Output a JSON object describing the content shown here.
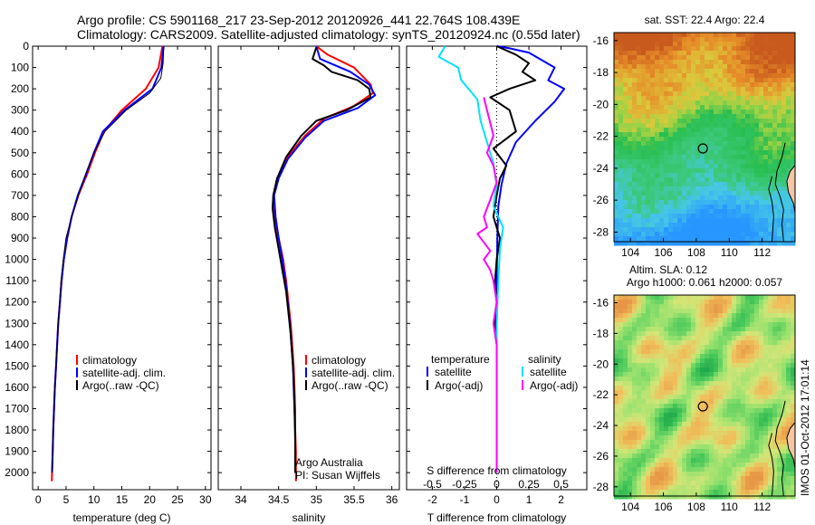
{
  "header": {
    "line1": "Argo profile: CS 5901168_217 23-Sep-2012 20120926_441 22.764S 108.439E",
    "line2": "Climatology: CARS2009. Satellite-adjusted climatology: synTS_20120924.nc (0.55d later)"
  },
  "credit": "IMOS 01-Oct-2012 17:01:14",
  "colors": {
    "climatology": "#ff0000",
    "satellite": "#0000ff",
    "argo": "#000000",
    "sat_salinity": "#00e0ff",
    "argo_adj_salinity": "#ff00ff"
  },
  "chart_data": [
    {
      "id": "temp",
      "type": "line",
      "xlabel": "temperature (deg C)",
      "ylabel": "",
      "xlim": [
        -1,
        31
      ],
      "ylim": [
        2080,
        0
      ],
      "xticks": [
        0,
        5,
        10,
        15,
        20,
        25,
        30
      ],
      "yticks": [
        0,
        100,
        200,
        300,
        400,
        500,
        600,
        700,
        800,
        900,
        1000,
        1100,
        1200,
        1300,
        1400,
        1500,
        1600,
        1700,
        1800,
        1900,
        2000
      ],
      "grid": false,
      "legend_entries": [
        "climatology",
        "satellite-adj. clim.",
        "Argo(..raw -QC)"
      ],
      "series": [
        {
          "name": "climatology",
          "color": "#ff0000",
          "width": 2,
          "points": [
            [
              22.3,
              0
            ],
            [
              21.6,
              100
            ],
            [
              19.3,
              200
            ],
            [
              15.0,
              300
            ],
            [
              11.8,
              400
            ],
            [
              10.2,
              500
            ],
            [
              8.8,
              600
            ],
            [
              7.2,
              700
            ],
            [
              6.0,
              800
            ],
            [
              5.2,
              900
            ],
            [
              4.6,
              1000
            ],
            [
              4.2,
              1100
            ],
            [
              3.9,
              1200
            ],
            [
              3.6,
              1300
            ],
            [
              3.4,
              1400
            ],
            [
              3.2,
              1500
            ],
            [
              3.0,
              1600
            ],
            [
              2.85,
              1700
            ],
            [
              2.7,
              1800
            ],
            [
              2.6,
              1900
            ],
            [
              2.5,
              2000
            ],
            [
              2.45,
              2040
            ]
          ]
        },
        {
          "name": "satellite-adj. clim.",
          "color": "#0000ff",
          "width": 2,
          "points": [
            [
              22.5,
              0
            ],
            [
              22.1,
              100
            ],
            [
              20.5,
              200
            ],
            [
              15.5,
              300
            ],
            [
              11.6,
              400
            ],
            [
              10.0,
              500
            ],
            [
              8.6,
              600
            ],
            [
              7.1,
              700
            ],
            [
              6.0,
              800
            ],
            [
              5.2,
              900
            ],
            [
              4.6,
              1000
            ],
            [
              4.2,
              1100
            ],
            [
              3.9,
              1200
            ],
            [
              3.6,
              1300
            ],
            [
              3.4,
              1400
            ],
            [
              3.2,
              1500
            ],
            [
              3.0,
              1600
            ],
            [
              2.85,
              1700
            ],
            [
              2.7,
              1800
            ],
            [
              2.6,
              1900
            ],
            [
              2.5,
              2000
            ]
          ]
        },
        {
          "name": "Argo(..raw -QC)",
          "color": "#000000",
          "width": 1,
          "points": [
            [
              22.5,
              5
            ],
            [
              22.4,
              80
            ],
            [
              22.0,
              150
            ],
            [
              20.0,
              220
            ],
            [
              15.8,
              300
            ],
            [
              12.0,
              400
            ],
            [
              10.0,
              500
            ],
            [
              8.5,
              600
            ],
            [
              7.2,
              700
            ],
            [
              6.0,
              800
            ],
            [
              5.0,
              900
            ],
            [
              4.5,
              1000
            ],
            [
              4.1,
              1100
            ],
            [
              3.85,
              1200
            ],
            [
              3.6,
              1300
            ],
            [
              3.4,
              1400
            ],
            [
              3.2,
              1500
            ],
            [
              3.0,
              1600
            ],
            [
              2.85,
              1700
            ],
            [
              2.7,
              1800
            ],
            [
              2.6,
              1900
            ],
            [
              2.5,
              2000
            ]
          ]
        }
      ]
    },
    {
      "id": "sal",
      "type": "line",
      "xlabel": "salinity",
      "ylabel": "",
      "xlim": [
        33.7,
        36.1
      ],
      "ylim": [
        2080,
        0
      ],
      "xticks": [
        34,
        34.5,
        35,
        35.5,
        36
      ],
      "grid": false,
      "legend_entries": [
        "climatology",
        "satellite-adj. clim.",
        "Argo(..raw -QC)"
      ],
      "annotation_lines": [
        "Argo Australia",
        "PI: Susan Wijffels"
      ],
      "series": [
        {
          "name": "climatology",
          "color": "#ff0000",
          "width": 2,
          "points": [
            [
              35.0,
              0
            ],
            [
              35.15,
              40
            ],
            [
              35.5,
              100
            ],
            [
              35.72,
              180
            ],
            [
              35.75,
              220
            ],
            [
              35.5,
              280
            ],
            [
              35.1,
              340
            ],
            [
              34.85,
              420
            ],
            [
              34.62,
              520
            ],
            [
              34.48,
              620
            ],
            [
              34.43,
              700
            ],
            [
              34.45,
              800
            ],
            [
              34.5,
              900
            ],
            [
              34.56,
              1000
            ],
            [
              34.6,
              1100
            ],
            [
              34.63,
              1200
            ],
            [
              34.66,
              1300
            ],
            [
              34.68,
              1400
            ],
            [
              34.7,
              1500
            ],
            [
              34.71,
              1600
            ],
            [
              34.72,
              1700
            ],
            [
              34.72,
              1800
            ],
            [
              34.73,
              1900
            ],
            [
              34.73,
              2000
            ],
            [
              34.73,
              2040
            ]
          ]
        },
        {
          "name": "satellite-adj. clim.",
          "color": "#0000ff",
          "width": 2,
          "points": [
            [
              35.0,
              0
            ],
            [
              35.05,
              60
            ],
            [
              35.45,
              120
            ],
            [
              35.7,
              180
            ],
            [
              35.78,
              230
            ],
            [
              35.55,
              290
            ],
            [
              35.1,
              350
            ],
            [
              34.85,
              430
            ],
            [
              34.62,
              530
            ],
            [
              34.5,
              620
            ],
            [
              34.44,
              700
            ],
            [
              34.46,
              800
            ],
            [
              34.5,
              900
            ],
            [
              34.55,
              1000
            ],
            [
              34.59,
              1100
            ],
            [
              34.62,
              1200
            ],
            [
              34.65,
              1300
            ],
            [
              34.67,
              1400
            ],
            [
              34.69,
              1500
            ],
            [
              34.7,
              1600
            ],
            [
              34.71,
              1700
            ],
            [
              34.72,
              1800
            ],
            [
              34.72,
              1900
            ],
            [
              34.72,
              2000
            ]
          ]
        },
        {
          "name": "Argo(..raw -QC)",
          "color": "#000000",
          "width": 2,
          "points": [
            [
              35.0,
              5
            ],
            [
              34.95,
              60
            ],
            [
              35.1,
              90
            ],
            [
              35.2,
              120
            ],
            [
              35.55,
              160
            ],
            [
              35.7,
              200
            ],
            [
              35.72,
              240
            ],
            [
              35.4,
              300
            ],
            [
              35.0,
              350
            ],
            [
              34.8,
              420
            ],
            [
              34.6,
              520
            ],
            [
              34.48,
              620
            ],
            [
              34.43,
              700
            ],
            [
              34.42,
              760
            ],
            [
              34.45,
              850
            ],
            [
              34.5,
              950
            ],
            [
              34.55,
              1050
            ],
            [
              34.6,
              1150
            ],
            [
              34.63,
              1250
            ],
            [
              34.66,
              1350
            ],
            [
              34.68,
              1450
            ],
            [
              34.7,
              1550
            ],
            [
              34.71,
              1700
            ],
            [
              34.72,
              1850
            ],
            [
              34.72,
              2000
            ]
          ]
        }
      ]
    },
    {
      "id": "diff",
      "type": "line",
      "xlabel": "T difference from climatology",
      "top_xlabel": "S difference from climatology",
      "ylabel": "",
      "xlim": [
        -2.8,
        2.8
      ],
      "ylim": [
        2080,
        0
      ],
      "xticks": [
        -2,
        -1,
        0,
        1,
        2
      ],
      "top_xticks": [
        -0.5,
        -0.25,
        0,
        0.25,
        0.5
      ],
      "zero_line": true,
      "grid": false,
      "legend_headings": [
        "temperature",
        "salinity"
      ],
      "legend_entries": [
        "satellite",
        "Argo(-adj)",
        "satellite",
        "Argo(-adj)"
      ],
      "series": [
        {
          "name": "satellite",
          "color": "#0000ff",
          "width": 2,
          "quantity": "temperature",
          "points": [
            [
              0.0,
              0
            ],
            [
              0.4,
              10
            ],
            [
              1.0,
              30
            ],
            [
              1.8,
              100
            ],
            [
              1.6,
              160
            ],
            [
              2.1,
              200
            ],
            [
              1.8,
              260
            ],
            [
              1.2,
              350
            ],
            [
              0.6,
              450
            ],
            [
              0.3,
              550
            ],
            [
              0.15,
              650
            ],
            [
              0.05,
              750
            ],
            [
              0.02,
              900
            ],
            [
              0.0,
              1100
            ],
            [
              0.0,
              1500
            ],
            [
              0.0,
              2000
            ]
          ]
        },
        {
          "name": "Argo(-adj)",
          "color": "#000000",
          "width": 2,
          "quantity": "temperature",
          "points": [
            [
              0.0,
              0
            ],
            [
              0.6,
              40
            ],
            [
              1.0,
              80
            ],
            [
              0.8,
              120
            ],
            [
              1.2,
              160
            ],
            [
              0.4,
              200
            ],
            [
              -0.2,
              240
            ],
            [
              0.4,
              300
            ],
            [
              0.6,
              400
            ],
            [
              -0.1,
              480
            ],
            [
              0.3,
              560
            ],
            [
              0.1,
              620
            ],
            [
              0.0,
              700
            ],
            [
              -0.1,
              800
            ],
            [
              0.1,
              900
            ],
            [
              0.0,
              1000
            ],
            [
              -0.05,
              1100
            ],
            [
              0.0,
              1200
            ],
            [
              -0.05,
              1300
            ],
            [
              0.0,
              1400
            ],
            [
              0.0,
              1600
            ],
            [
              0.0,
              1800
            ],
            [
              0.0,
              2000
            ]
          ]
        },
        {
          "name": "satellite",
          "color": "#00e0ff",
          "width": 2,
          "quantity": "salinity",
          "points": [
            [
              -1.6,
              0
            ],
            [
              -1.8,
              50
            ],
            [
              -1.2,
              100
            ],
            [
              -1.1,
              160
            ],
            [
              -0.6,
              250
            ],
            [
              -0.5,
              350
            ],
            [
              -0.3,
              450
            ],
            [
              -0.1,
              550
            ],
            [
              0.0,
              650
            ],
            [
              -0.1,
              750
            ],
            [
              0.2,
              850
            ],
            [
              0.1,
              950
            ],
            [
              0.05,
              1100
            ],
            [
              0.0,
              1300
            ],
            [
              0.0,
              1600
            ],
            [
              0.0,
              2000
            ]
          ]
        },
        {
          "name": "Argo(-adj)",
          "color": "#ff00ff",
          "width": 2,
          "quantity": "salinity",
          "points": [
            [
              -0.4,
              240
            ],
            [
              -0.3,
              300
            ],
            [
              -0.2,
              360
            ],
            [
              -0.1,
              420
            ],
            [
              -0.3,
              500
            ],
            [
              -0.1,
              560
            ],
            [
              0.0,
              640
            ],
            [
              -0.2,
              720
            ],
            [
              -0.4,
              800
            ],
            [
              -0.3,
              850
            ],
            [
              -0.6,
              880
            ],
            [
              -0.4,
              920
            ],
            [
              -0.2,
              960
            ],
            [
              -0.4,
              1000
            ],
            [
              -0.2,
              1050
            ],
            [
              -0.1,
              1100
            ],
            [
              0.0,
              1200
            ],
            [
              -0.1,
              1300
            ],
            [
              0.0,
              1400
            ],
            [
              0.0,
              1600
            ],
            [
              0.0,
              1800
            ],
            [
              0.0,
              2000
            ]
          ]
        }
      ]
    },
    {
      "id": "sst_map",
      "type": "heatmap",
      "title": "sat. SST: 22.4  Argo: 22.4",
      "xlim": [
        103,
        114
      ],
      "ylim": [
        -28.6,
        -15.5
      ],
      "xticks": [
        104,
        106,
        108,
        110,
        112
      ],
      "yticks": [
        -16,
        -18,
        -20,
        -22,
        -24,
        -26,
        -28
      ],
      "marker": {
        "lon": 108.4,
        "lat": -22.76
      }
    },
    {
      "id": "sla_map",
      "type": "heatmap",
      "title": "Altim. SLA: 0.12",
      "subtitle": "Argo h1000: 0.061 h2000: 0.057",
      "xlim": [
        103,
        114
      ],
      "ylim": [
        -28.6,
        -15.5
      ],
      "xticks": [
        104,
        106,
        108,
        110,
        112
      ],
      "yticks": [
        -16,
        -18,
        -20,
        -22,
        -24,
        -26,
        -28
      ],
      "marker": {
        "lon": 108.4,
        "lat": -22.76
      }
    }
  ]
}
